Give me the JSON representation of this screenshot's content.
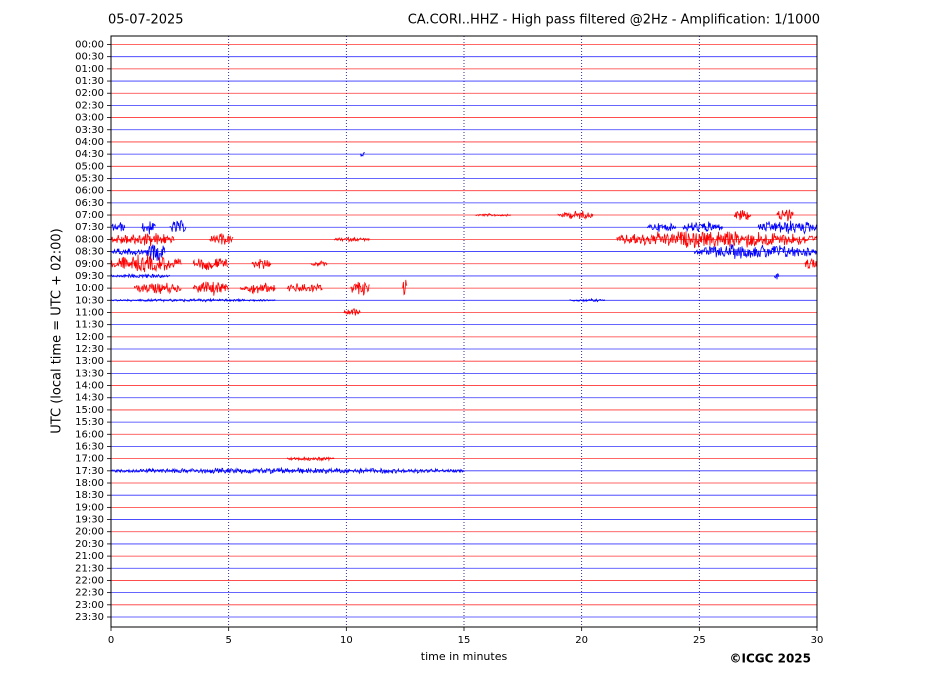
{
  "chart_data": {
    "type": "helicorder",
    "date": "05-07-2025",
    "title": "CA.CORI..HHZ - High pass filtered @2Hz - Amplification: 1/1000",
    "ylabel": "UTC (local time = UTC + 02:00)",
    "xlabel": "time in minutes",
    "credit": "©ICGC 2025",
    "xlim": [
      0,
      30
    ],
    "xticks": [
      0,
      5,
      10,
      15,
      20,
      25,
      30
    ],
    "grid": true,
    "colors": [
      "#ff0000",
      "#0000ff"
    ],
    "rows": [
      "00:00",
      "00:30",
      "01:00",
      "01:30",
      "02:00",
      "02:30",
      "03:00",
      "03:30",
      "04:00",
      "04:30",
      "05:00",
      "05:30",
      "06:00",
      "06:30",
      "07:00",
      "07:30",
      "08:00",
      "08:30",
      "09:00",
      "09:30",
      "10:00",
      "10:30",
      "11:00",
      "11:30",
      "12:00",
      "12:30",
      "13:00",
      "13:30",
      "14:00",
      "14:30",
      "15:00",
      "15:30",
      "16:00",
      "16:30",
      "17:00",
      "17:30",
      "18:00",
      "18:30",
      "19:00",
      "19:30",
      "20:00",
      "20:30",
      "21:00",
      "21:30",
      "22:00",
      "22:30",
      "23:00",
      "23:30"
    ],
    "traces": [
      [],
      [],
      [],
      [],
      [],
      [],
      [],
      [],
      [],
      [
        {
          "start": 10.6,
          "end": 10.8,
          "amplitude": 0.2
        }
      ],
      [],
      [],
      [],
      [],
      [
        {
          "start": 15.5,
          "end": 17.0,
          "amplitude": 0.1
        },
        {
          "start": 19.0,
          "end": 20.5,
          "amplitude": 0.3
        },
        {
          "start": 26.5,
          "end": 27.2,
          "amplitude": 0.5
        },
        {
          "start": 28.3,
          "end": 29.0,
          "amplitude": 0.5
        }
      ],
      [
        {
          "start": 0,
          "end": 0.6,
          "amplitude": 0.4
        },
        {
          "start": 1.3,
          "end": 1.9,
          "amplitude": 0.5
        },
        {
          "start": 2.5,
          "end": 3.2,
          "amplitude": 0.5
        },
        {
          "start": 22.8,
          "end": 24.0,
          "amplitude": 0.3
        },
        {
          "start": 24.3,
          "end": 26.0,
          "amplitude": 0.4
        },
        {
          "start": 27.5,
          "end": 30,
          "amplitude": 0.5
        }
      ],
      [
        {
          "start": 0,
          "end": 2.7,
          "amplitude": 0.5
        },
        {
          "start": 4.2,
          "end": 5.2,
          "amplitude": 0.4
        },
        {
          "start": 9.5,
          "end": 11,
          "amplitude": 0.15
        },
        {
          "start": 21.5,
          "end": 30,
          "amplitude": 0.6
        }
      ],
      [
        {
          "start": 0,
          "end": 1.5,
          "amplitude": 0.25
        },
        {
          "start": 1.5,
          "end": 2.3,
          "amplitude": 0.7
        },
        {
          "start": 24.8,
          "end": 30,
          "amplitude": 0.5
        }
      ],
      [
        {
          "start": 0,
          "end": 3,
          "amplitude": 0.6
        },
        {
          "start": 3.5,
          "end": 5,
          "amplitude": 0.5
        },
        {
          "start": 6.0,
          "end": 6.8,
          "amplitude": 0.4
        },
        {
          "start": 8.5,
          "end": 9.2,
          "amplitude": 0.2
        },
        {
          "start": 29.5,
          "end": 30,
          "amplitude": 0.5
        }
      ],
      [
        {
          "start": 0,
          "end": 2.5,
          "amplitude": 0.15
        },
        {
          "start": 28.2,
          "end": 28.4,
          "amplitude": 0.3
        }
      ],
      [
        {
          "start": 1,
          "end": 3,
          "amplitude": 0.4
        },
        {
          "start": 3.5,
          "end": 5,
          "amplitude": 0.5
        },
        {
          "start": 5.5,
          "end": 7,
          "amplitude": 0.4
        },
        {
          "start": 7.5,
          "end": 9,
          "amplitude": 0.4
        },
        {
          "start": 10.2,
          "end": 11,
          "amplitude": 0.6
        },
        {
          "start": 12.4,
          "end": 12.6,
          "amplitude": 0.6
        }
      ],
      [
        {
          "start": 0,
          "end": 7,
          "amplitude": 0.1
        },
        {
          "start": 19.5,
          "end": 21,
          "amplitude": 0.1
        }
      ],
      [
        {
          "start": 9.9,
          "end": 10.6,
          "amplitude": 0.3
        }
      ],
      [],
      [],
      [],
      [],
      [],
      [],
      [],
      [],
      [],
      [],
      [],
      [
        {
          "start": 7.5,
          "end": 9.5,
          "amplitude": 0.15
        }
      ],
      [
        {
          "start": 0,
          "end": 15,
          "amplitude": 0.2
        }
      ],
      [],
      [],
      [],
      [],
      [],
      [],
      [],
      [],
      [],
      [],
      [],
      []
    ]
  }
}
